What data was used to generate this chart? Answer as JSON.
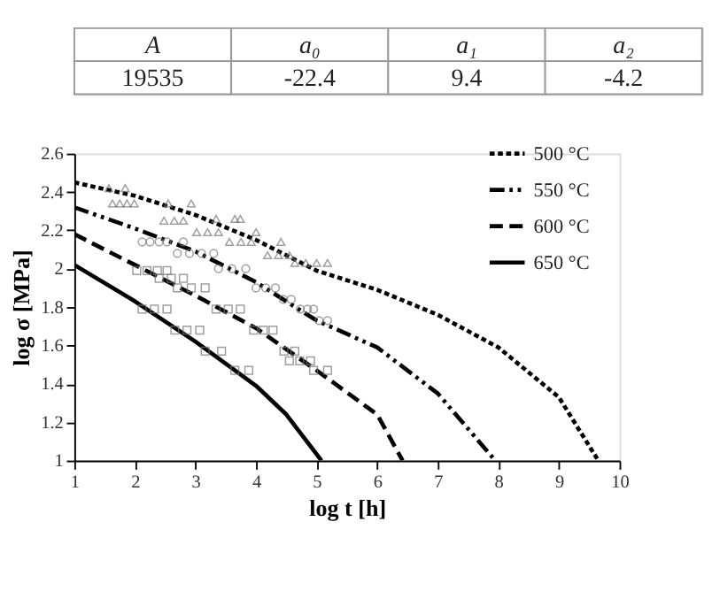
{
  "chart_data": [
    {
      "type": "other",
      "categories": [
        "A",
        "a₀",
        "a₁",
        "a₂"
      ],
      "values": [
        19535,
        -22.4,
        9.4,
        -4.2
      ],
      "data_labels": true
    },
    {
      "type": "line",
      "xlabel": "log t [h]",
      "ylabel": "log σ [MPa]",
      "xlim": [
        1,
        10
      ],
      "ylim": [
        1,
        2.6
      ],
      "xticks": [
        1,
        2,
        3,
        4,
        5,
        6,
        7,
        8,
        9,
        10
      ],
      "yticks": [
        1,
        1.2,
        1.4,
        1.6,
        1.8,
        2,
        2.2,
        2.4,
        2.6
      ],
      "grid": false,
      "legend": "top right",
      "series": [
        {
          "name": "500 °C",
          "type": "line",
          "line_style": "dotted",
          "color": "#000000",
          "x": [
            1,
            2,
            3,
            4,
            5,
            6,
            7,
            8,
            9,
            9.65
          ],
          "values": [
            2.45,
            2.38,
            2.28,
            2.15,
            1.99,
            1.89,
            1.76,
            1.59,
            1.33,
            1.0
          ]
        },
        {
          "name": "550 °C",
          "type": "line",
          "line_style": "dashdot",
          "color": "#000000",
          "x": [
            1,
            2,
            3,
            4,
            5,
            6,
            7,
            7.95
          ],
          "values": [
            2.32,
            2.21,
            2.09,
            1.93,
            1.73,
            1.59,
            1.35,
            1.0
          ]
        },
        {
          "name": "600 °C",
          "type": "line",
          "line_style": "dashed",
          "color": "#000000",
          "x": [
            1,
            2,
            3,
            4,
            5,
            6,
            6.42
          ],
          "values": [
            2.18,
            2.02,
            1.86,
            1.69,
            1.47,
            1.24,
            1.0
          ]
        },
        {
          "name": "650 °C",
          "type": "line",
          "line_style": "solid",
          "color": "#000000",
          "x": [
            1,
            2,
            3,
            4,
            4.5,
            5.08
          ],
          "values": [
            2.02,
            1.83,
            1.62,
            1.39,
            1.24,
            1.0
          ]
        },
        {
          "type": "scatter",
          "marker": "triangle",
          "color": "#777777",
          "x": [
            1.57,
            1.84,
            1.63,
            1.75,
            1.87,
            1.99,
            2.55,
            2.93,
            2.48,
            2.65,
            2.8,
            3.02,
            3.2,
            3.38,
            3.34,
            3.65,
            3.74,
            4.0,
            3.56,
            3.75,
            3.92,
            4.41,
            4.19,
            4.37,
            4.55,
            4.64,
            4.82,
            5.0,
            5.18
          ],
          "values": [
            2.42,
            2.42,
            2.34,
            2.34,
            2.34,
            2.34,
            2.34,
            2.34,
            2.25,
            2.25,
            2.25,
            2.19,
            2.19,
            2.19,
            2.26,
            2.26,
            2.26,
            2.19,
            2.14,
            2.14,
            2.14,
            2.14,
            2.07,
            2.07,
            2.07,
            2.03,
            2.03,
            2.03,
            2.03
          ]
        },
        {
          "type": "scatter",
          "marker": "circle",
          "color": "#777777",
          "x": [
            2.12,
            2.25,
            2.4,
            2.53,
            2.8,
            2.7,
            2.9,
            3.1,
            3.3,
            3.38,
            3.6,
            3.83,
            4.0,
            4.16,
            4.32,
            4.45,
            4.58,
            4.73,
            4.85,
            4.95,
            5.04,
            5.18
          ],
          "values": [
            2.14,
            2.14,
            2.14,
            2.14,
            2.14,
            2.08,
            2.08,
            2.08,
            2.08,
            2.0,
            2.0,
            2.0,
            1.9,
            1.9,
            1.9,
            1.84,
            1.84,
            1.79,
            1.79,
            1.79,
            1.73,
            1.73
          ]
        },
        {
          "type": "scatter",
          "marker": "square",
          "color": "#777777",
          "x": [
            2.03,
            2.2,
            2.37,
            2.53,
            2.4,
            2.6,
            2.8,
            2.7,
            2.93,
            3.16,
            3.34,
            3.54,
            3.74,
            3.96,
            4.12,
            4.28,
            4.46,
            4.64,
            4.55,
            4.72,
            4.9,
            4.95,
            5.18
          ],
          "values": [
            1.99,
            1.99,
            1.99,
            1.99,
            1.95,
            1.95,
            1.95,
            1.9,
            1.9,
            1.9,
            1.79,
            1.79,
            1.79,
            1.68,
            1.68,
            1.68,
            1.57,
            1.57,
            1.52,
            1.52,
            1.52,
            1.47,
            1.47
          ]
        },
        {
          "type": "scatter",
          "marker": "square",
          "color": "#777777",
          "x": [
            2.12,
            2.32,
            2.53,
            2.66,
            2.86,
            3.07,
            3.16,
            3.43,
            3.65,
            3.88
          ],
          "values": [
            1.79,
            1.79,
            1.79,
            1.68,
            1.68,
            1.68,
            1.57,
            1.57,
            1.47,
            1.47
          ]
        }
      ]
    }
  ]
}
